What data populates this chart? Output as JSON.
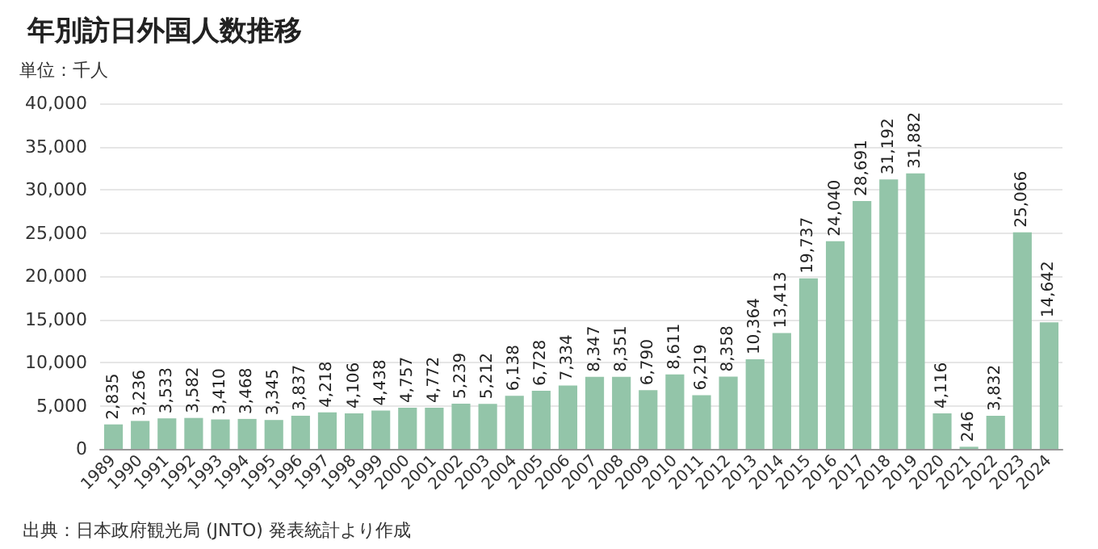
{
  "chart_data": {
    "type": "bar",
    "title": "年別訪日外国人数推移",
    "ylabel": "単位：千人",
    "categories": [
      "1989",
      "1990",
      "1991",
      "1992",
      "1993",
      "1994",
      "1995",
      "1996",
      "1997",
      "1998",
      "1999",
      "2000",
      "2001",
      "2002",
      "2003",
      "2004",
      "2005",
      "2006",
      "2007",
      "2008",
      "2009",
      "2010",
      "2011",
      "2012",
      "2013",
      "2014",
      "2015",
      "2016",
      "2017",
      "2018",
      "2019",
      "2020",
      "2021",
      "2022",
      "2023",
      "2024"
    ],
    "values": [
      2835,
      3236,
      3533,
      3582,
      3410,
      3468,
      3345,
      3837,
      4218,
      4106,
      4438,
      4757,
      4772,
      5239,
      5212,
      6138,
      6728,
      7334,
      8347,
      8351,
      6790,
      8611,
      6219,
      8358,
      10364,
      13413,
      19737,
      24040,
      28691,
      31192,
      31882,
      4116,
      246,
      3832,
      25066,
      14642
    ],
    "value_labels": [
      "2,835",
      "3,236",
      "3,533",
      "3,582",
      "3,410",
      "3,468",
      "3,345",
      "3,837",
      "4,218",
      "4,106",
      "4,438",
      "4,757",
      "4,772",
      "5,239",
      "5,212",
      "6,138",
      "6,728",
      "7,334",
      "8,347",
      "8,351",
      "6,790",
      "8,611",
      "6,219",
      "8,358",
      "10,364",
      "13,413",
      "19,737",
      "24,040",
      "28,691",
      "31,192",
      "31,882",
      "4,116",
      "246",
      "3,832",
      "25,066",
      "14,642"
    ],
    "color": "#93c5a9",
    "ylim": [
      0,
      40000
    ],
    "yticks": [
      0,
      {
        "value": 5000,
        "label": "5,000"
      },
      {
        "value": 10000,
        "label": "10,000"
      },
      {
        "value": 15000,
        "label": "15,000"
      },
      {
        "value": 20000,
        "label": "20,000"
      },
      {
        "value": 25000,
        "label": "25,000"
      },
      {
        "value": 30000,
        "label": "30,000"
      },
      {
        "value": 35000,
        "label": "35,000"
      },
      {
        "value": 40000,
        "label": "40,000"
      }
    ],
    "grid": "y",
    "annotations": [
      "出典：日本政府観光局 (JNTO) 発表統計より作成"
    ]
  }
}
